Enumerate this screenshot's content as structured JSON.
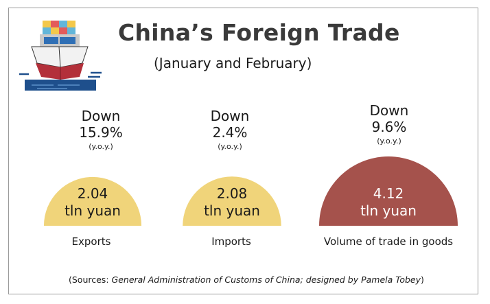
{
  "header": {
    "title": "China’s Foreign Trade",
    "subtitle": "(January and February)"
  },
  "colors": {
    "exports": "#f0d47a",
    "imports": "#f0d47a",
    "volume": "#a5524c",
    "ship_hull": "#b3303a",
    "water": "#1e4f8c"
  },
  "stats": [
    {
      "direction": "Down",
      "change": "15.9%",
      "basis": "(y.o.y.)"
    },
    {
      "direction": "Down",
      "change": "2.4%",
      "basis": "(y.o.y.)"
    },
    {
      "direction": "Down",
      "change": "9.6%",
      "basis": "(y.o.y.)"
    }
  ],
  "chart_data": {
    "type": "semicircle-area",
    "title": "China’s Foreign Trade",
    "subtitle": "(January and February)",
    "categories": [
      "Exports",
      "Imports",
      "Volume of trade in goods"
    ],
    "values": [
      2.04,
      2.08,
      4.12
    ],
    "value_labels": [
      {
        "amount": "2.04",
        "unit": "tln yuan"
      },
      {
        "amount": "2.08",
        "unit": "tln yuan"
      },
      {
        "amount": "4.12",
        "unit": "tln yuan"
      }
    ],
    "yoy_change_percent": [
      -15.9,
      -2.4,
      -9.6
    ]
  },
  "source": {
    "prefix": "(Sources: ",
    "body": "General Administration of Customs of China; designed by Pamela Tobey",
    "suffix": ")"
  },
  "icons": {
    "ship": "cargo-ship-icon"
  }
}
